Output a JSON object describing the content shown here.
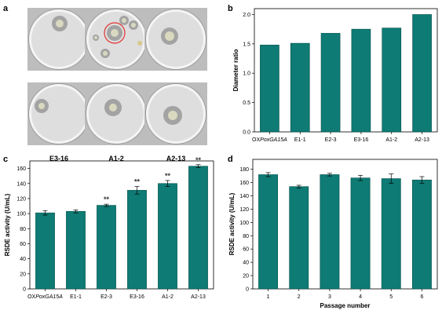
{
  "panels": {
    "a": "a",
    "b": "b",
    "c": "c",
    "d": "d"
  },
  "dishes": {
    "labels": [
      "OXPoxGA15A",
      "E1-1",
      "E2-3",
      "E3-16",
      "A1-2",
      "A2-13"
    ],
    "label_parts": {
      "prefix": "OX",
      "italic": "PoxGA15A"
    }
  },
  "colors": {
    "bar": "#0e7b74",
    "bar_edge": "#07524e",
    "axis": "#000000",
    "dish_bg": "#bdbdbd",
    "plate": "#dedede",
    "halo": "#8f8f8f",
    "colony": "#d9d9c0",
    "red_circle": "#e23030"
  },
  "chart_data": [
    {
      "panel": "b",
      "type": "bar",
      "categories": [
        "OXPoxGA15A",
        "E1-1",
        "E2-3",
        "E3-16",
        "A1-2",
        "A2-13"
      ],
      "values": [
        1.48,
        1.51,
        1.68,
        1.75,
        1.77,
        2.0
      ],
      "ylabel": "Diameter ratio",
      "ylim": [
        0,
        2.1
      ],
      "yticks": [
        "0.0",
        "0.5",
        "1.0",
        "1.5",
        "2.0"
      ],
      "ytick_values": [
        0,
        0.5,
        1.0,
        1.5,
        2.0
      ],
      "xlabel": ""
    },
    {
      "panel": "c",
      "type": "bar",
      "categories": [
        "OXPoxGA15A",
        "E1-1",
        "E2-3",
        "E3-16",
        "A1-2",
        "A2-13"
      ],
      "values": [
        101,
        103,
        111,
        131,
        140,
        163
      ],
      "errors": [
        3,
        2,
        1.5,
        5,
        4,
        2
      ],
      "significance": [
        "",
        "",
        "**",
        "**",
        "**",
        "**"
      ],
      "ylabel": "RSDE activity (U/mL)",
      "ylim": [
        0,
        170
      ],
      "yticks": [
        "0",
        "20",
        "40",
        "60",
        "80",
        "100",
        "120",
        "140",
        "160"
      ],
      "ytick_values": [
        0,
        20,
        40,
        60,
        80,
        100,
        120,
        140,
        160
      ],
      "xlabel": ""
    },
    {
      "panel": "d",
      "type": "bar",
      "categories": [
        "1",
        "2",
        "3",
        "4",
        "5",
        "6"
      ],
      "values": [
        172,
        154,
        172,
        167,
        166,
        164
      ],
      "errors": [
        3,
        2,
        2,
        4,
        7,
        5
      ],
      "ylabel": "RSDE activity (U/mL)",
      "xlabel": "Passage number",
      "ylim": [
        0,
        195
      ],
      "yticks": [
        "0",
        "20",
        "40",
        "60",
        "80",
        "100",
        "120",
        "140",
        "160",
        "180"
      ],
      "ytick_values": [
        0,
        20,
        40,
        60,
        80,
        100,
        120,
        140,
        160,
        180
      ]
    }
  ]
}
